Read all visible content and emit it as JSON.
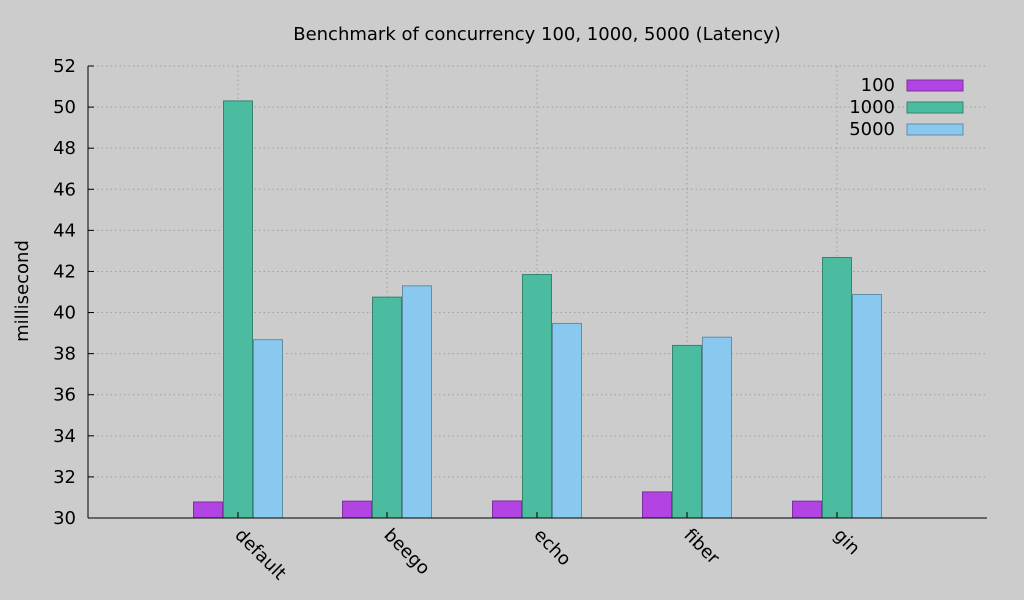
{
  "chart_data": {
    "type": "bar",
    "title": "Benchmark of concurrency 100, 1000, 5000 (Latency)",
    "xlabel": "",
    "ylabel": "millisecond",
    "ylim": [
      30,
      52
    ],
    "yticks": [
      "30",
      "32",
      "34",
      "36",
      "38",
      "40",
      "42",
      "44",
      "46",
      "48",
      "50",
      "52"
    ],
    "categories": [
      "default",
      "beego",
      "echo",
      "fiber",
      "gin"
    ],
    "series": [
      {
        "name": "100",
        "color": "#b244e3",
        "values": [
          30.78,
          30.82,
          30.83,
          31.27,
          30.82
        ]
      },
      {
        "name": "1000",
        "color": "#4bbc9f",
        "values": [
          50.3,
          40.75,
          41.85,
          38.4,
          42.68
        ]
      },
      {
        "name": "5000",
        "color": "#8ac9ef",
        "values": [
          38.68,
          41.3,
          39.47,
          38.8,
          40.88
        ]
      }
    ],
    "grid": true,
    "legend_position": "top-right"
  }
}
